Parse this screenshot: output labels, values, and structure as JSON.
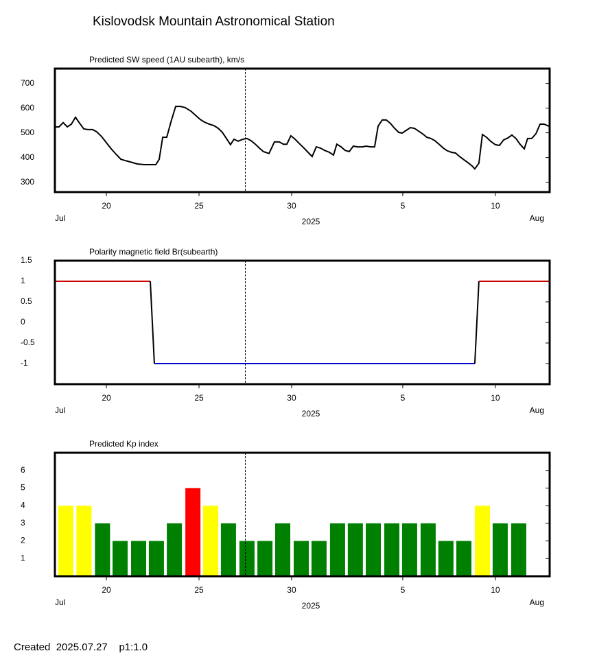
{
  "title": "Kislovodsk Mountain Astronomical Station",
  "footer": "Created  2025.07.27    p1:1.0",
  "chart_data": [
    {
      "type": "line",
      "title": "Predicted SW speed (1AU subearth), km/s",
      "x": [
        17.22,
        17.44,
        17.67,
        17.89,
        18.11,
        18.33,
        18.56,
        18.78,
        19.0,
        19.26,
        19.48,
        19.74,
        20.0,
        20.26,
        20.56,
        20.78,
        21.0,
        21.3,
        21.67,
        22.04,
        22.41,
        22.67,
        22.85,
        23.04,
        23.26,
        23.48,
        23.74,
        24.0,
        24.26,
        24.56,
        24.81,
        25.07,
        25.3,
        25.56,
        25.81,
        26.04,
        26.26,
        26.48,
        26.7,
        26.89,
        27.11,
        27.37,
        27.59,
        27.81,
        28.04,
        28.26,
        28.48,
        28.78,
        29.07,
        29.33,
        29.56,
        29.74,
        29.96,
        30.19,
        30.41,
        30.63,
        30.85,
        31.11,
        31.33,
        31.56,
        31.78,
        32.04,
        32.26,
        32.44,
        32.67,
        32.89,
        33.11,
        33.33,
        33.56,
        33.81,
        34.04,
        34.26,
        34.48,
        34.67,
        34.89,
        35.11,
        35.33,
        35.56,
        35.78,
        35.96,
        36.19,
        36.41,
        36.63,
        36.85,
        37.07,
        37.3,
        37.52,
        37.74,
        37.96,
        38.19,
        38.41,
        38.63,
        38.85,
        39.07,
        39.3,
        39.52,
        39.74,
        39.89,
        40.11,
        40.3,
        40.52,
        40.74,
        41.0,
        41.22,
        41.44,
        41.67,
        41.89,
        42.11,
        42.33,
        42.56,
        42.74,
        42.96,
        43.19,
        43.41,
        43.63,
        43.89
      ],
      "values": [
        524,
        524,
        541,
        524,
        535,
        563,
        538,
        516,
        513,
        513,
        504,
        485,
        460,
        435,
        410,
        393,
        388,
        382,
        374,
        371,
        371,
        371,
        393,
        482,
        482,
        543,
        607,
        607,
        602,
        588,
        571,
        554,
        543,
        535,
        529,
        518,
        502,
        477,
        452,
        474,
        466,
        474,
        477,
        468,
        454,
        438,
        424,
        416,
        463,
        463,
        454,
        454,
        488,
        474,
        457,
        441,
        424,
        404,
        443,
        438,
        429,
        421,
        410,
        454,
        443,
        429,
        424,
        446,
        443,
        443,
        446,
        443,
        443,
        527,
        552,
        552,
        538,
        518,
        502,
        499,
        510,
        521,
        518,
        507,
        496,
        482,
        477,
        468,
        454,
        438,
        427,
        421,
        418,
        404,
        391,
        379,
        366,
        354,
        377,
        493,
        482,
        466,
        452,
        449,
        471,
        479,
        491,
        477,
        454,
        435,
        477,
        477,
        496,
        535,
        535,
        527
      ],
      "color": "#000000",
      "xlim": [
        17.22,
        43.93
      ],
      "ylim": [
        260,
        760
      ],
      "xticks": [
        20,
        25,
        30,
        {
          "value": 36,
          "label": "5"
        },
        {
          "value": 41,
          "label": "10"
        }
      ],
      "yticks": [
        300,
        400,
        500,
        600,
        700
      ],
      "x_start_label": "Jul",
      "x_year_label": "2025",
      "x_end_label": "Aug",
      "marker_x": 27.5
    },
    {
      "type": "line",
      "title": "Polarity magnetic field  Br(subearth)",
      "x": [
        17.22,
        22.37,
        22.59,
        39.89,
        40.11,
        43.89
      ],
      "values": [
        1,
        1,
        -1,
        -1,
        1,
        1
      ],
      "sign_colors": {
        "positive": "#cc0000",
        "negative": "#0000cc",
        "transition": "#000000"
      },
      "xlim": [
        17.22,
        43.93
      ],
      "ylim": [
        -1.5,
        1.5
      ],
      "xticks": [
        20,
        25,
        30,
        {
          "value": 36,
          "label": "5"
        },
        {
          "value": 41,
          "label": "10"
        }
      ],
      "yticks": [
        1.5,
        1,
        0.5,
        0,
        -0.5,
        -1
      ],
      "x_start_label": "Jul",
      "x_year_label": "2025",
      "x_end_label": "Aug",
      "marker_x": 27.5
    },
    {
      "type": "bar",
      "title": "Predicted Kp index",
      "x": [
        17.81,
        18.79,
        19.79,
        20.74,
        21.74,
        22.7,
        23.67,
        24.67,
        25.63,
        26.59,
        27.59,
        28.56,
        29.52,
        30.52,
        31.48,
        32.48,
        33.44,
        34.41,
        35.41,
        36.37,
        37.37,
        38.33,
        39.3,
        40.3,
        41.26,
        42.26
      ],
      "values": [
        4,
        4,
        3,
        2,
        2,
        2,
        3,
        5,
        4,
        3,
        2,
        2,
        3,
        2,
        2,
        3,
        3,
        3,
        3,
        3,
        3,
        2,
        2,
        4,
        3,
        3
      ],
      "colors": [
        "#ffff00",
        "#ffff00",
        "#008000",
        "#008000",
        "#008000",
        "#008000",
        "#008000",
        "#ff0000",
        "#ffff00",
        "#008000",
        "#008000",
        "#008000",
        "#008000",
        "#008000",
        "#008000",
        "#008000",
        "#008000",
        "#008000",
        "#008000",
        "#008000",
        "#008000",
        "#008000",
        "#008000",
        "#ffff00",
        "#008000",
        "#008000"
      ],
      "xlim": [
        17.22,
        43.93
      ],
      "ylim": [
        0,
        7
      ],
      "xticks": [
        20,
        25,
        30,
        {
          "value": 36,
          "label": "5"
        },
        {
          "value": 41,
          "label": "10"
        }
      ],
      "yticks": [
        1,
        2,
        3,
        4,
        5,
        6
      ],
      "x_start_label": "Jul",
      "x_year_label": "2025",
      "x_end_label": "Aug",
      "marker_x": 27.5
    }
  ]
}
